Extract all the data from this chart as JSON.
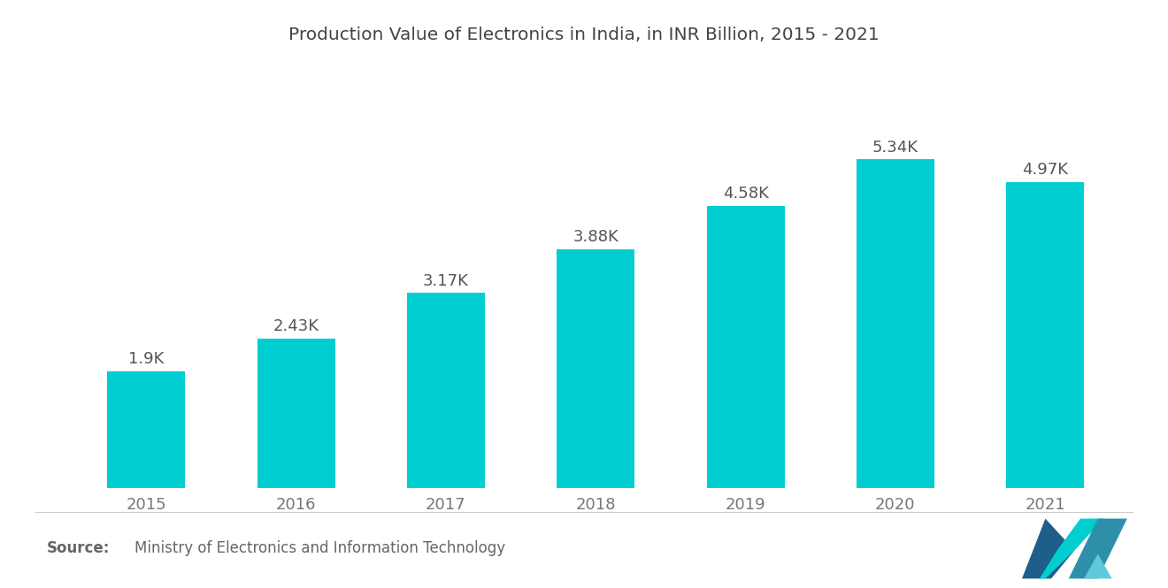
{
  "title": "Production Value of Electronics in India, in INR Billion, 2015 - 2021",
  "categories": [
    "2015",
    "2016",
    "2017",
    "2018",
    "2019",
    "2020",
    "2021"
  ],
  "values": [
    1900,
    2430,
    3170,
    3880,
    4580,
    5340,
    4970
  ],
  "labels": [
    "1.9K",
    "2.43K",
    "3.17K",
    "3.88K",
    "4.58K",
    "5.34K",
    "4.97K"
  ],
  "bar_color": "#00CED1",
  "background_color": "#ffffff",
  "title_fontsize": 14.5,
  "label_fontsize": 13,
  "tick_fontsize": 13,
  "source_bold": "Source:",
  "source_text": "Ministry of Electronics and Information Technology",
  "source_fontsize": 12,
  "ylim": [
    0,
    6500
  ]
}
